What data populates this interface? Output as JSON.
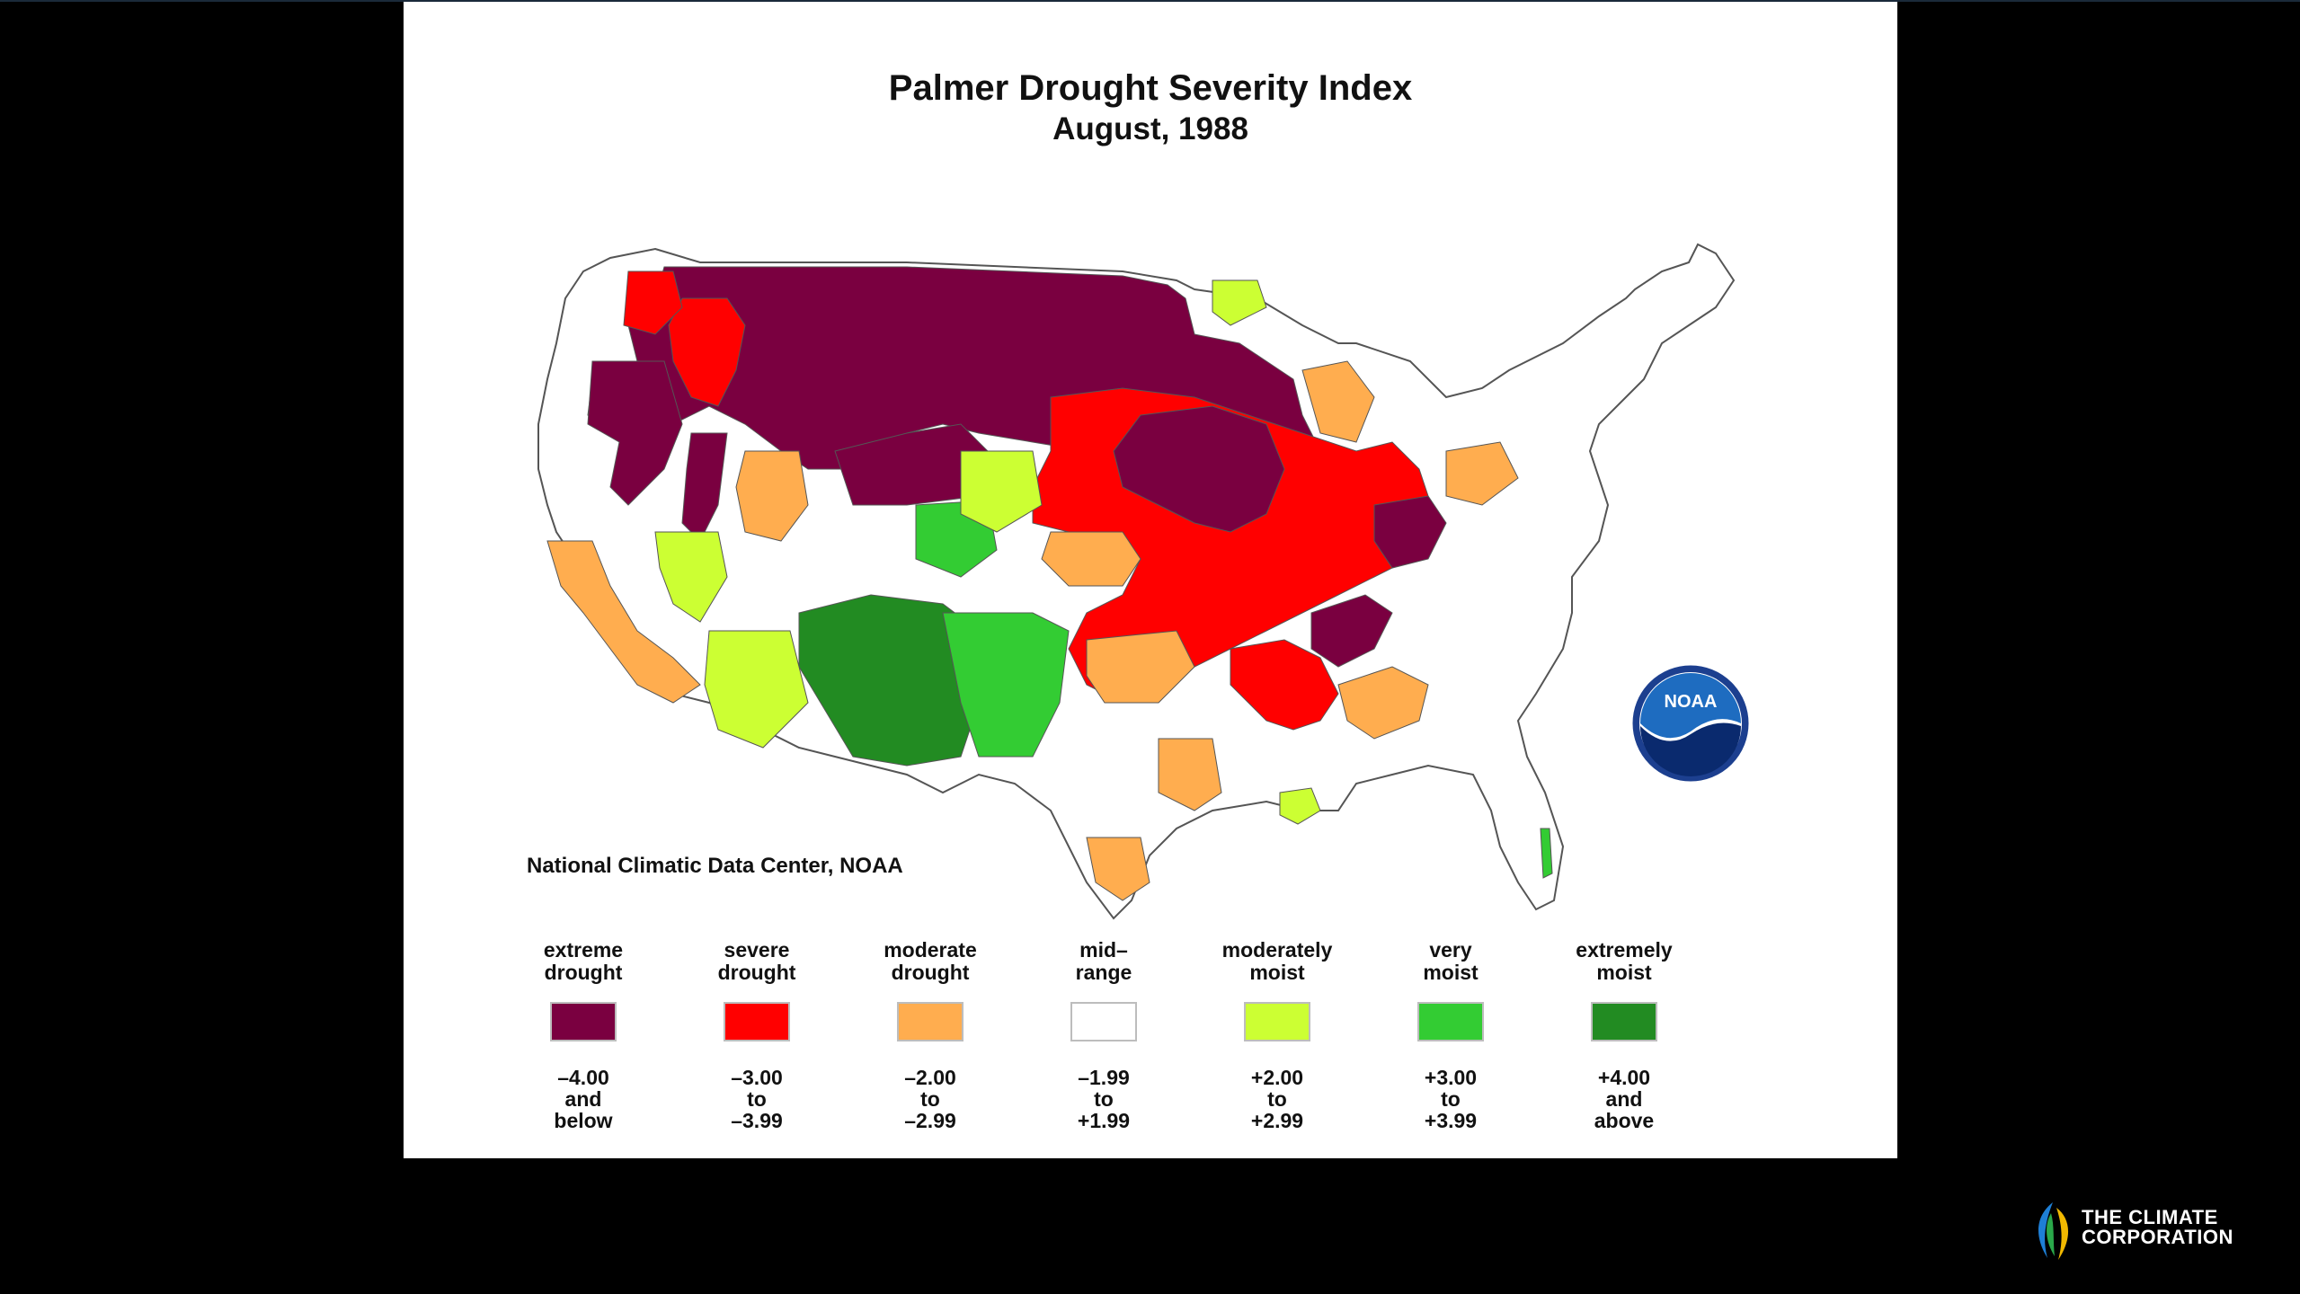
{
  "slide": {
    "title": "Palmer Drought Severity Index",
    "subtitle": "August, 1988",
    "credit": "National Climatic Data Center, NOAA",
    "logo_label": "NOAA"
  },
  "legend": [
    {
      "label": "extreme\ndrought",
      "range": "–4.00\nand\nbelow",
      "color": "#7a0040"
    },
    {
      "label": "severe\ndrought",
      "range": "–3.00\nto\n–3.99",
      "color": "#ff0000"
    },
    {
      "label": "moderate\ndrought",
      "range": "–2.00\nto\n–2.99",
      "color": "#ffad4f"
    },
    {
      "label": "mid–\nrange",
      "range": "–1.99\nto\n+1.99",
      "color": "#ffffff"
    },
    {
      "label": "moderately\nmoist",
      "range": "+2.00\nto\n+2.99",
      "color": "#ccff33"
    },
    {
      "label": "very\nmoist",
      "range": "+3.00\nto\n+3.99",
      "color": "#33cc33"
    },
    {
      "label": "extremely\nmoist",
      "range": "+4.00\nand\nabove",
      "color": "#228b22"
    }
  ],
  "brand": {
    "name": "THE CLIMATE\nCORPORATION"
  }
}
